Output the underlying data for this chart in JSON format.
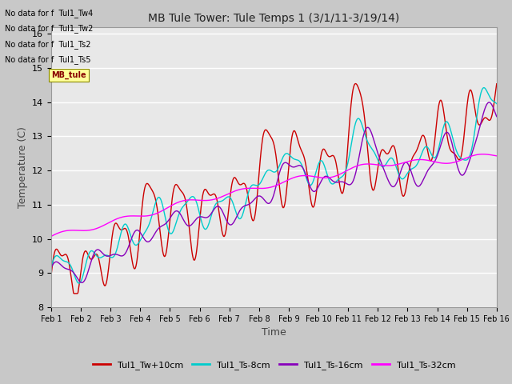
{
  "title": "MB Tule Tower: Tule Temps 1 (3/1/11-3/19/14)",
  "xlabel": "Time",
  "ylabel": "Temperature (C)",
  "ylim": [
    8.0,
    16.2
  ],
  "yticks": [
    8.0,
    9.0,
    10.0,
    11.0,
    12.0,
    13.0,
    14.0,
    15.0,
    16.0
  ],
  "xtick_labels": [
    "Feb 1",
    "Feb 2",
    "Feb 3",
    "Feb 4",
    "Feb 5",
    "Feb 6",
    "Feb 7",
    "Feb 8",
    "Feb 9",
    "Feb 10",
    "Feb 11",
    "Feb 12",
    "Feb 13",
    "Feb 14",
    "Feb 15",
    "Feb 16"
  ],
  "colors": {
    "Tw10cm": "#cc0000",
    "Ts8cm": "#00cccc",
    "Ts16cm": "#8800bb",
    "Ts32cm": "#ff00ff"
  },
  "legend_labels": [
    "Tul1_Tw+10cm",
    "Tul1_Ts-8cm",
    "Tul1_Ts-16cm",
    "Tul1_Ts-32cm"
  ],
  "no_data_texts": [
    "No data for f  Tul1_Tw4",
    "No data for f  Tul1_Tw2",
    "No data for f  Tul1_Ts2",
    "No data for f  Tul1_Ts5"
  ],
  "fig_bg_color": "#c8c8c8",
  "plot_bg_color": "#e8e8e8"
}
